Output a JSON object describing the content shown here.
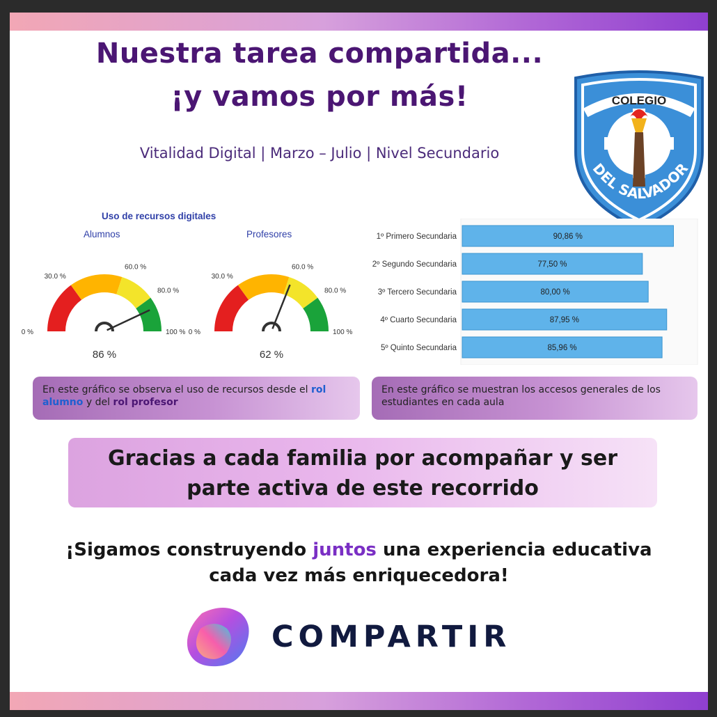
{
  "header": {
    "title_line1": "Nuestra tarea compartida...",
    "title_line2": "¡y vamos por más!",
    "subtitle": "Vitalidad Digital | Marzo – Julio | Nivel Secundario"
  },
  "crest": {
    "top_text": "COLEGIO",
    "bottom_text": "DEL SALVADOR"
  },
  "chart_data": [
    {
      "type": "gauge",
      "title": "Uso de recursos digitales",
      "gauges": [
        {
          "name": "Alumnos",
          "value": 86,
          "value_label": "86 %"
        },
        {
          "name": "Profesores",
          "value": 62,
          "value_label": "62 %"
        }
      ],
      "scale_labels": [
        "0 %",
        "30.0 %",
        "60.0 %",
        "80.0 %",
        "100 %"
      ],
      "bands": [
        {
          "from": 0,
          "to": 30,
          "color": "#e41f1f"
        },
        {
          "from": 30,
          "to": 60,
          "color": "#ffb400"
        },
        {
          "from": 60,
          "to": 80,
          "color": "#f3e42a"
        },
        {
          "from": 80,
          "to": 100,
          "color": "#1aa33a"
        }
      ]
    },
    {
      "type": "bar",
      "orientation": "horizontal",
      "categories": [
        "1º Primero Secundaria",
        "2º Segundo Secundaria",
        "3º Tercero Secundaria",
        "4º Cuarto Secundaria",
        "5º Quinto Secundaria"
      ],
      "values": [
        90.86,
        77.5,
        80.0,
        87.95,
        85.96
      ],
      "value_labels": [
        "90,86 %",
        "77,50 %",
        "80,00 %",
        "87,95 %",
        "85,96 %"
      ],
      "xlim": [
        0,
        100
      ],
      "bar_color": "#5fb3ea"
    }
  ],
  "notes": {
    "left": {
      "before": "En este gráfico se observa el uso de recursos desde el ",
      "hl1": "rol alumno",
      "mid": " y del ",
      "hl2": "rol profesor"
    },
    "right": "En este gráfico se muestran los accesos generales de los estudiantes en cada aula"
  },
  "thanks": {
    "line1": "Gracias a cada familia por acompañar y ser",
    "line2": "parte activa de este recorrido"
  },
  "closing": {
    "before": "¡Sigamos construyendo ",
    "highlight": "juntos",
    "after": " una experiencia educativa",
    "line2": "cada vez más enriquecedora!"
  },
  "logo": {
    "text": "COMPARTIR"
  }
}
